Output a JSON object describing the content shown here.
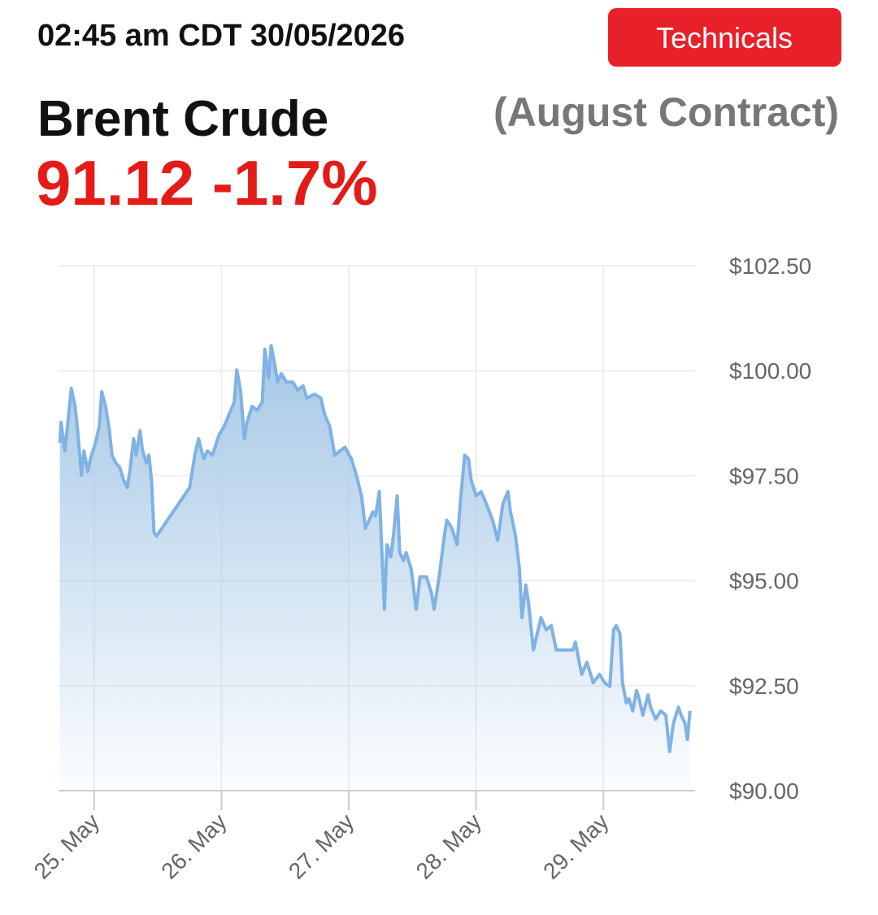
{
  "header": {
    "timestamp": "02:45 am CDT 30/05/2026",
    "button": "Technicals",
    "price": "91.12 -1.7%"
  },
  "chart_data": {
    "type": "area",
    "title": "Brent Crude",
    "subtitle": "(August Contract)",
    "color": "#7fb2e5",
    "grid": true,
    "x": [
      24.73,
      24.74,
      24.77,
      24.8,
      24.82,
      24.85,
      24.87,
      24.9,
      24.92,
      24.95,
      24.97,
      25.01,
      25.04,
      25.06,
      25.09,
      25.12,
      25.14,
      25.17,
      25.2,
      25.23,
      25.26,
      25.28,
      25.31,
      25.33,
      25.36,
      25.38,
      25.41,
      25.43,
      25.45,
      25.47,
      25.49,
      25.75,
      25.79,
      25.82,
      25.86,
      25.89,
      25.93,
      25.96,
      25.98,
      26.02,
      26.06,
      26.1,
      26.12,
      26.15,
      26.18,
      26.2,
      26.24,
      26.28,
      26.32,
      26.34,
      26.37,
      26.39,
      26.42,
      26.44,
      26.47,
      26.51,
      26.56,
      26.6,
      26.64,
      26.67,
      26.73,
      26.78,
      26.81,
      26.85,
      26.89,
      26.93,
      26.97,
      27.02,
      27.06,
      27.1,
      27.13,
      27.16,
      27.19,
      27.21,
      27.24,
      27.26,
      27.28,
      27.3,
      27.33,
      27.35,
      27.38,
      27.4,
      27.43,
      27.45,
      27.49,
      27.53,
      27.56,
      27.61,
      27.65,
      27.67,
      27.71,
      27.75,
      27.77,
      27.81,
      27.85,
      27.88,
      27.91,
      27.94,
      27.96,
      28.0,
      28.04,
      28.08,
      28.13,
      28.17,
      28.21,
      28.25,
      28.27,
      28.31,
      28.34,
      28.36,
      28.39,
      28.41,
      28.45,
      28.48,
      28.51,
      28.55,
      28.59,
      28.63,
      28.76,
      28.78,
      28.81,
      28.83,
      28.87,
      28.92,
      28.97,
      29.01,
      29.05,
      29.08,
      29.1,
      29.13,
      29.15,
      29.18,
      29.2,
      29.23,
      29.26,
      29.28,
      29.31,
      29.35,
      29.37,
      29.41,
      29.45,
      29.49,
      29.52,
      29.55,
      29.59,
      29.61,
      29.64,
      29.66,
      29.68
    ],
    "values": [
      98.28,
      98.77,
      98.09,
      98.96,
      99.58,
      99.15,
      98.57,
      97.51,
      98.09,
      97.6,
      97.9,
      98.28,
      98.67,
      99.5,
      99.15,
      98.57,
      97.99,
      97.8,
      97.7,
      97.41,
      97.22,
      97.6,
      98.38,
      97.99,
      98.57,
      98.09,
      97.8,
      97.99,
      97.41,
      96.15,
      96.06,
      97.22,
      97.99,
      98.38,
      97.9,
      98.09,
      97.99,
      98.28,
      98.47,
      98.67,
      98.96,
      99.25,
      100.02,
      99.54,
      98.38,
      98.77,
      99.15,
      99.06,
      99.25,
      100.51,
      99.83,
      100.6,
      100.12,
      99.73,
      99.93,
      99.73,
      99.73,
      99.54,
      99.64,
      99.35,
      99.44,
      99.35,
      98.96,
      98.67,
      97.99,
      98.09,
      98.18,
      97.9,
      97.51,
      97.02,
      96.25,
      96.44,
      96.64,
      96.54,
      97.12,
      95.67,
      94.32,
      95.86,
      95.57,
      96.06,
      97.02,
      95.67,
      95.48,
      95.67,
      95.28,
      94.32,
      95.09,
      95.09,
      94.7,
      94.32,
      95.09,
      96.06,
      96.44,
      96.25,
      95.86,
      97.02,
      97.99,
      97.9,
      97.41,
      97.02,
      97.12,
      96.83,
      96.44,
      95.96,
      96.83,
      97.12,
      96.64,
      96.06,
      95.28,
      94.12,
      94.9,
      94.51,
      93.35,
      93.74,
      94.12,
      93.83,
      93.93,
      93.35,
      93.35,
      93.54,
      93.06,
      92.77,
      93.06,
      92.57,
      92.77,
      92.57,
      92.48,
      93.83,
      93.93,
      93.74,
      92.57,
      92.09,
      92.19,
      91.9,
      92.38,
      92.19,
      91.8,
      92.28,
      91.99,
      91.7,
      91.9,
      91.8,
      90.93,
      91.61,
      91.99,
      91.8,
      91.61,
      91.22,
      91.9
    ],
    "xlim": [
      24.72,
      29.72
    ],
    "xticks": [
      {
        "value": 25,
        "label": "25. May"
      },
      {
        "value": 26,
        "label": "26. May"
      },
      {
        "value": 27,
        "label": "27. May"
      },
      {
        "value": 28,
        "label": "28. May"
      },
      {
        "value": 29,
        "label": "29. May"
      }
    ],
    "ylim": [
      90,
      102.5
    ],
    "yticks": [
      {
        "value": 90,
        "label": "$90.00"
      },
      {
        "value": 92.5,
        "label": "$92.50"
      },
      {
        "value": 95,
        "label": "$95.00"
      },
      {
        "value": 97.5,
        "label": "$97.50"
      },
      {
        "value": 100,
        "label": "$100.00"
      },
      {
        "value": 102.5,
        "label": "$102.50"
      }
    ]
  }
}
